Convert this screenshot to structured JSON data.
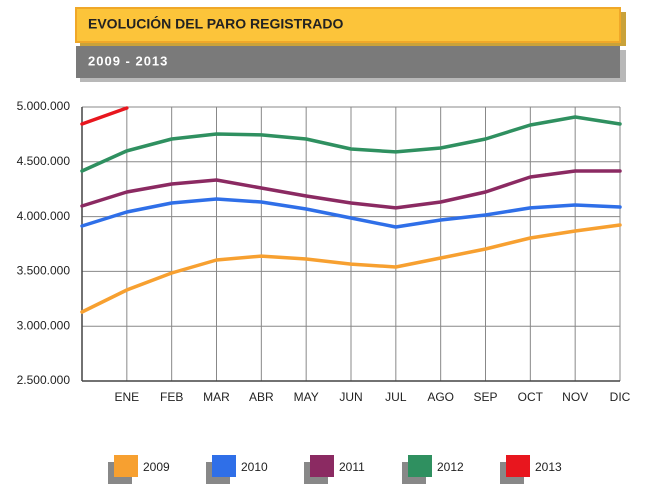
{
  "chart_data": {
    "type": "line",
    "title": "EVOLUCIÓN DEL PARO REGISTRADO",
    "subtitle": "2009 - 2013",
    "categories": [
      null,
      "ENE",
      "FEB",
      "MAR",
      "ABR",
      "MAY",
      "JUN",
      "JUL",
      "AGO",
      "SEP",
      "OCT",
      "NOV",
      "DIC"
    ],
    "series": [
      {
        "name": "2009",
        "color": "#f7a030",
        "values": [
          3130000,
          3330000,
          3485000,
          3604000,
          3640000,
          3613000,
          3567000,
          3540000,
          3622000,
          3704000,
          3805000,
          3869000,
          3923000
        ]
      },
      {
        "name": "2010",
        "color": "#2f6fe8",
        "values": [
          3914000,
          4042000,
          4124000,
          4161000,
          4133000,
          4069000,
          3987000,
          3905000,
          3969000,
          4015000,
          4079000,
          4106000,
          4088000
        ]
      },
      {
        "name": "2011",
        "color": "#8b2a62",
        "values": [
          4097000,
          4224000,
          4297000,
          4334000,
          4261000,
          4188000,
          4124000,
          4079000,
          4133000,
          4224000,
          4361000,
          4416000,
          4416000
        ]
      },
      {
        "name": "2012",
        "color": "#2f9060",
        "values": [
          4416000,
          4599000,
          4708000,
          4754000,
          4745000,
          4708000,
          4617000,
          4590000,
          4626000,
          4708000,
          4836000,
          4909000,
          4845000
        ]
      },
      {
        "name": "2013",
        "color": "#e8161e",
        "values": [
          4845000,
          4991000,
          null,
          null,
          null,
          null,
          null,
          null,
          null,
          null,
          null,
          null,
          null
        ]
      }
    ],
    "ylim": [
      2500000,
      5000000
    ],
    "yticks": [
      {
        "value": 2500000,
        "label": "2.500.000"
      },
      {
        "value": 3000000,
        "label": "3.000.000"
      },
      {
        "value": 3500000,
        "label": "3.500.000"
      },
      {
        "value": 4000000,
        "label": "4.000.000"
      },
      {
        "value": 4500000,
        "label": "4.500.000"
      },
      {
        "value": 5000000,
        "label": "5.000.000"
      }
    ],
    "grid": true
  }
}
